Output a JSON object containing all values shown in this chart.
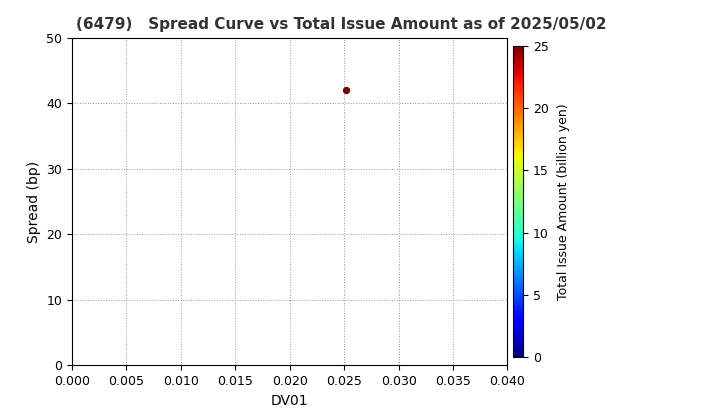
{
  "title": "(6479)   Spread Curve vs Total Issue Amount as of 2025/05/02",
  "xlabel": "DV01",
  "ylabel": "Spread (bp)",
  "colorbar_label": "Total Issue Amount (billion yen)",
  "xlim": [
    0.0,
    0.04
  ],
  "ylim": [
    0,
    50
  ],
  "xticks": [
    0.0,
    0.005,
    0.01,
    0.015,
    0.02,
    0.025,
    0.03,
    0.035,
    0.04
  ],
  "yticks": [
    0,
    10,
    20,
    30,
    40,
    50
  ],
  "colorbar_ticks": [
    0,
    5,
    10,
    15,
    20,
    25
  ],
  "colorbar_lim": [
    0,
    25
  ],
  "scatter_x": [
    0.0252
  ],
  "scatter_y": [
    42.0
  ],
  "scatter_color": [
    25.0
  ],
  "scatter_size": 18,
  "grid_color": "#999999",
  "background_color": "#ffffff",
  "title_fontsize": 11,
  "axis_label_fontsize": 10,
  "tick_fontsize": 9,
  "cbar_tick_fontsize": 9,
  "cbar_label_fontsize": 9
}
